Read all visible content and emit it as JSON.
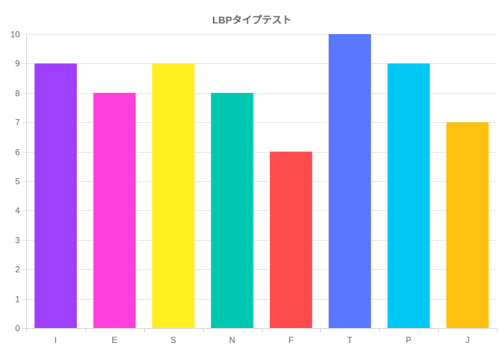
{
  "chart_data": {
    "type": "bar",
    "title": "LBPタイプテスト",
    "xlabel": "",
    "ylabel": "",
    "categories": [
      "I",
      "E",
      "S",
      "N",
      "F",
      "T",
      "P",
      "J"
    ],
    "values": [
      9,
      8,
      9,
      8,
      6,
      10,
      9,
      7
    ],
    "colors": [
      "#a040ff",
      "#ff40dc",
      "#ffee22",
      "#00c8b0",
      "#ff4d4d",
      "#5a78ff",
      "#00c8f5",
      "#ffc010"
    ],
    "ylim": [
      0,
      10
    ],
    "yticks": [
      "0",
      "1",
      "2",
      "3",
      "4",
      "5",
      "6",
      "7",
      "8",
      "9",
      "10"
    ],
    "grid": true,
    "legend": "none"
  }
}
